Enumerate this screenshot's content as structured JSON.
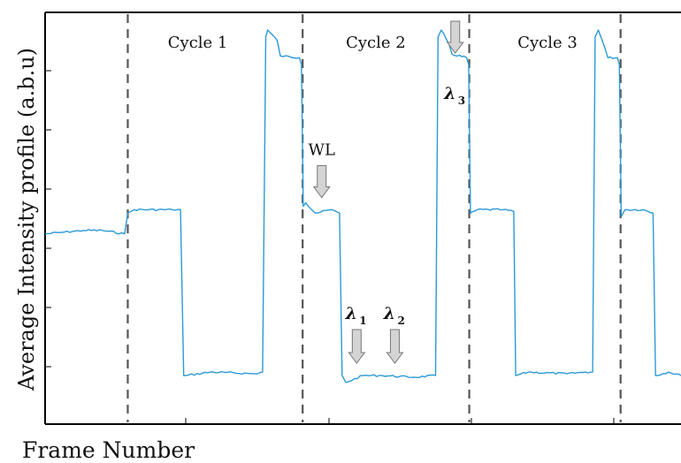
{
  "chart_data": {
    "type": "line",
    "title": "",
    "xlabel": "Frame Number",
    "ylabel": "Average Intensity profile (a.b.u)",
    "xlim": [
      0,
      100
    ],
    "ylim": [
      0,
      100
    ],
    "x_ticks_visible": true,
    "y_ticks_visible": true,
    "x_tick_labels": [],
    "y_tick_labels": [],
    "grid": false,
    "line_color": "#2b9ad6",
    "divider_color": "#555555",
    "cycle_boundaries": [
      13,
      40.5,
      66.7,
      90.5
    ],
    "cycle_labels": [
      {
        "text": "Cycle 1",
        "x": 24
      },
      {
        "text": "Cycle 2",
        "x": 52
      },
      {
        "text": "Cycle 3",
        "x": 79
      }
    ],
    "series": [
      {
        "points": [
          [
            0,
            41
          ],
          [
            3,
            41.5
          ],
          [
            6,
            42
          ],
          [
            9,
            42
          ],
          [
            12.5,
            41
          ],
          [
            13,
            47
          ],
          [
            14,
            48
          ],
          [
            20,
            48
          ],
          [
            21.3,
            48
          ],
          [
            21.8,
            0
          ],
          [
            22.2,
            0
          ],
          [
            26,
            1
          ],
          [
            33,
            0.5
          ],
          [
            34.2,
            1
          ],
          [
            34.7,
            98
          ],
          [
            35,
            100
          ],
          [
            36.5,
            97
          ],
          [
            37,
            92.5
          ],
          [
            40,
            92
          ],
          [
            40.3,
            90
          ],
          [
            40.6,
            49
          ],
          [
            41,
            50
          ],
          [
            42.5,
            47
          ],
          [
            45,
            48
          ],
          [
            46.3,
            47
          ],
          [
            46.7,
            0
          ],
          [
            47.3,
            -2
          ],
          [
            50,
            0
          ],
          [
            53,
            0
          ],
          [
            58,
            -0.5
          ],
          [
            61.4,
            0
          ],
          [
            61.8,
            98
          ],
          [
            62.3,
            100
          ],
          [
            63.5,
            96
          ],
          [
            64,
            93
          ],
          [
            66.3,
            92
          ],
          [
            66.6,
            90
          ],
          [
            66.9,
            47
          ],
          [
            68,
            48
          ],
          [
            72,
            48
          ],
          [
            73.7,
            47.5
          ],
          [
            74,
            0
          ],
          [
            76,
            1
          ],
          [
            82,
            0.5
          ],
          [
            85,
            1
          ],
          [
            86.1,
            1
          ],
          [
            86.5,
            98
          ],
          [
            87,
            100
          ],
          [
            88,
            95
          ],
          [
            88.5,
            92
          ],
          [
            90,
            92
          ],
          [
            90.3,
            90
          ],
          [
            90.6,
            46
          ],
          [
            91.2,
            48
          ],
          [
            94,
            48
          ],
          [
            95.6,
            47
          ],
          [
            96,
            0
          ],
          [
            98,
            1
          ],
          [
            100,
            0
          ]
        ]
      }
    ],
    "annotations": [
      {
        "name": "WL",
        "label": "WL",
        "subscript": "",
        "x": 43.5,
        "y": 50,
        "label_above": true
      },
      {
        "name": "lambda-1",
        "label": "λ",
        "subscript": "1",
        "x": 49,
        "y": 0,
        "label_above": true
      },
      {
        "name": "lambda-2",
        "label": "λ",
        "subscript": "2",
        "x": 55,
        "y": 0,
        "label_above": true
      },
      {
        "name": "lambda-3",
        "label": "λ",
        "subscript": "3",
        "x": 64.5,
        "y": 100,
        "label_above": false
      }
    ]
  }
}
